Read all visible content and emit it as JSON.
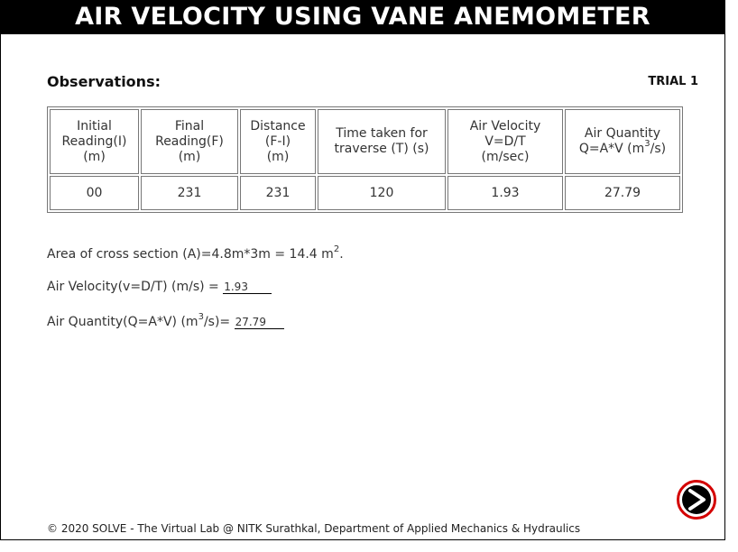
{
  "header": {
    "title": "AIR VELOCITY USING VANE ANEMOMETER"
  },
  "observations": {
    "heading": "Observations:",
    "trial_label": "TRIAL 1"
  },
  "table": {
    "headers": [
      [
        "Initial",
        "Reading(I)",
        "(m)"
      ],
      [
        "Final",
        "Reading(F)",
        "(m)"
      ],
      [
        "Distance",
        "(F-I)",
        "(m)"
      ],
      [
        "Time taken for",
        "traverse (T) (s)"
      ],
      [
        "Air Velocity",
        "V=D/T",
        "(m/sec)"
      ],
      [
        "Air Quantity",
        "Q=A*V (m",
        "3",
        "/s)"
      ]
    ],
    "row": [
      "00",
      "231",
      "231",
      "120",
      "1.93",
      "27.79"
    ]
  },
  "calc": {
    "area_text": "Area of cross section (A)=4.8m*3m = 14.4 m",
    "area_sup": "2",
    "area_end": ".",
    "velocity_label": "Air Velocity(v=D/T) (m/s) = ",
    "velocity_value": "1.93",
    "quantity_label_pre": "Air Quantity(Q=A*V) (m",
    "quantity_sup": "3",
    "quantity_label_post": "/s)= ",
    "quantity_value": "27.79"
  },
  "nav": {
    "next_icon": "next-arrow-icon",
    "accent_color": "#d40000"
  },
  "footer": {
    "text": "© 2020 SOLVE - The Virtual Lab @ NITK Surathkal, Department of Applied Mechanics & Hydraulics"
  }
}
